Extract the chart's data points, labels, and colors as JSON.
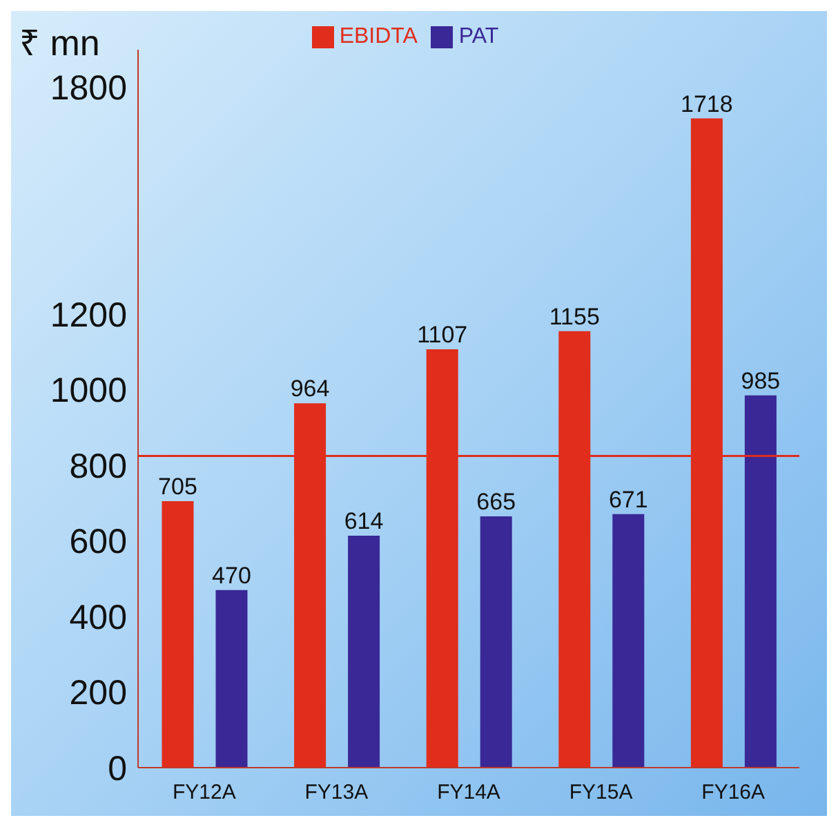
{
  "chart_data": {
    "type": "bar",
    "ylabel": "₹ mn",
    "categories": [
      "FY12A",
      "FY13A",
      "FY14A",
      "FY15A",
      "FY16A"
    ],
    "series": [
      {
        "name": "EBIDTA",
        "color": "#e02d1c",
        "values": [
          705,
          964,
          1107,
          1155,
          1718
        ]
      },
      {
        "name": "PAT",
        "color": "#3a2896",
        "values": [
          470,
          614,
          665,
          671,
          985
        ]
      }
    ],
    "ylim": [
      0,
      1900
    ],
    "yticks": [
      0,
      200,
      400,
      600,
      800,
      1000,
      1200,
      1800
    ],
    "ref_lines": [
      {
        "axis": "y",
        "value": 825,
        "color": "#e02d1c"
      }
    ],
    "data_labels": true,
    "legend": "top",
    "grid": false
  }
}
